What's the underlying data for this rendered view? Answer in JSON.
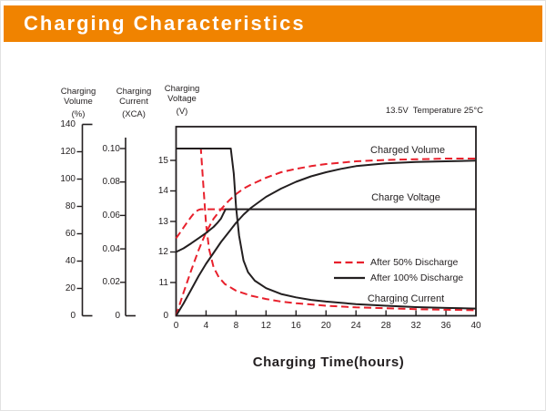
{
  "header": {
    "title": "Charging Characteristics"
  },
  "colors": {
    "accent_orange": "#F08300",
    "line_black": "#231F20",
    "line_red": "#E8202C",
    "title_text": "#FFFFFF"
  },
  "chart_data": {
    "type": "line",
    "annotation": "13.5V  Temperature 25°C",
    "x_axis": {
      "label": "Charging Time(hours)",
      "min": 0,
      "max": 40,
      "tick_values": [
        0,
        4,
        8,
        12,
        16,
        20,
        24,
        28,
        32,
        36,
        40
      ],
      "ticks": [
        "0",
        "4",
        "8",
        "12",
        "16",
        "20",
        "24",
        "28",
        "32",
        "36",
        "40"
      ]
    },
    "y_axes": {
      "volume": {
        "title_line1": "Charging",
        "title_line2": "Volume",
        "unit": "(%)",
        "min": 0,
        "max": 140,
        "tick_values": [
          140,
          120,
          100,
          80,
          60,
          40,
          20,
          0
        ],
        "ticks": [
          "140",
          "120",
          "100",
          "80",
          "60",
          "40",
          "20",
          "0"
        ]
      },
      "current": {
        "title_line1": "Charging",
        "title_line2": "Current",
        "unit": "(XCA)",
        "min": 0,
        "max": 0.1,
        "tick_values": [
          0.1,
          0.08,
          0.06,
          0.04,
          0.02,
          0
        ],
        "ticks": [
          "0.10",
          "0.08",
          "0.06",
          "0.04",
          "0.02",
          "0"
        ]
      },
      "voltage": {
        "title_line1": "Charging",
        "title_line2": "Voltage",
        "unit": "(V)",
        "min": 0,
        "max": 15.5,
        "tick_values": [
          15,
          14,
          13,
          12,
          11,
          0
        ],
        "ticks": [
          "15",
          "14",
          "13",
          "12",
          "11",
          "0"
        ]
      }
    },
    "curve_labels": {
      "charged_volume": "Charged Volume",
      "charge_voltage": "Charge Voltage",
      "charging_current": "Charging Current"
    },
    "legend": [
      {
        "label": "After 50% Discharge",
        "style": "dashed",
        "color": "#E8202C"
      },
      {
        "label": "After 100% Discharge",
        "style": "solid",
        "color": "#231F20"
      }
    ],
    "series": [
      {
        "name": "Charging Current",
        "condition": "After 50% Discharge",
        "axis": "current",
        "style": "dashed",
        "color": "#E8202C",
        "points": [
          [
            0,
            0.1
          ],
          [
            3.3,
            0.1
          ],
          [
            3.6,
            0.08
          ],
          [
            4,
            0.055
          ],
          [
            4.4,
            0.04
          ],
          [
            5,
            0.029
          ],
          [
            5.7,
            0.023
          ],
          [
            6.5,
            0.019
          ],
          [
            8,
            0.015
          ],
          [
            10,
            0.012
          ],
          [
            12,
            0.01
          ],
          [
            14,
            0.0085
          ],
          [
            16,
            0.0075
          ],
          [
            20,
            0.006
          ],
          [
            24,
            0.005
          ],
          [
            28,
            0.0045
          ],
          [
            32,
            0.004
          ],
          [
            36,
            0.0036
          ],
          [
            40,
            0.0033
          ]
        ]
      },
      {
        "name": "Charge Voltage",
        "condition": "After 50% Discharge",
        "axis": "voltage",
        "style": "dashed",
        "color": "#E8202C",
        "points": [
          [
            0,
            12.45
          ],
          [
            0.5,
            12.62
          ],
          [
            1,
            12.8
          ],
          [
            1.5,
            12.98
          ],
          [
            2,
            13.15
          ],
          [
            2.5,
            13.3
          ],
          [
            3,
            13.38
          ],
          [
            3.3,
            13.4
          ],
          [
            6.6,
            13.4
          ]
        ]
      },
      {
        "name": "Charged Volume",
        "condition": "After 50% Discharge",
        "axis": "volume",
        "style": "dashed",
        "color": "#E8202C",
        "points": [
          [
            0,
            0
          ],
          [
            1,
            17
          ],
          [
            2,
            33
          ],
          [
            3,
            48
          ],
          [
            4,
            61
          ],
          [
            5,
            71
          ],
          [
            6,
            78
          ],
          [
            7,
            84
          ],
          [
            8,
            89
          ],
          [
            9,
            93
          ],
          [
            10,
            96
          ],
          [
            12,
            101
          ],
          [
            14,
            105
          ],
          [
            16,
            107.5
          ],
          [
            18,
            109.5
          ],
          [
            20,
            111
          ],
          [
            24,
            113
          ],
          [
            28,
            114
          ],
          [
            32,
            114.5
          ],
          [
            36,
            115
          ],
          [
            40,
            115
          ]
        ]
      },
      {
        "name": "Charging Current",
        "condition": "After 100% Discharge",
        "axis": "current",
        "style": "solid",
        "color": "#231F20",
        "points": [
          [
            0,
            0.1
          ],
          [
            7.3,
            0.1
          ],
          [
            7.7,
            0.085
          ],
          [
            8,
            0.065
          ],
          [
            8.4,
            0.048
          ],
          [
            9,
            0.033
          ],
          [
            9.6,
            0.026
          ],
          [
            10.5,
            0.021
          ],
          [
            12,
            0.0165
          ],
          [
            14,
            0.013
          ],
          [
            16,
            0.011
          ],
          [
            18,
            0.0095
          ],
          [
            20,
            0.0085
          ],
          [
            24,
            0.007
          ],
          [
            28,
            0.006
          ],
          [
            32,
            0.0052
          ],
          [
            36,
            0.0047
          ],
          [
            40,
            0.0043
          ]
        ]
      },
      {
        "name": "Charge Voltage",
        "condition": "After 100% Discharge",
        "axis": "voltage",
        "style": "solid",
        "color": "#231F20",
        "points": [
          [
            0,
            12.0
          ],
          [
            1,
            12.12
          ],
          [
            2,
            12.28
          ],
          [
            3,
            12.45
          ],
          [
            4,
            12.62
          ],
          [
            5,
            12.82
          ],
          [
            5.5,
            12.95
          ],
          [
            6,
            13.1
          ],
          [
            6.3,
            13.25
          ],
          [
            6.6,
            13.4
          ],
          [
            40,
            13.4
          ]
        ]
      },
      {
        "name": "Charged Volume",
        "condition": "After 100% Discharge",
        "axis": "volume",
        "style": "solid",
        "color": "#231F20",
        "points": [
          [
            0,
            0
          ],
          [
            1,
            9
          ],
          [
            2,
            19
          ],
          [
            3,
            29
          ],
          [
            4,
            38
          ],
          [
            5,
            46
          ],
          [
            6,
            54
          ],
          [
            7,
            61
          ],
          [
            8,
            68
          ],
          [
            9,
            74
          ],
          [
            10,
            79
          ],
          [
            11,
            83
          ],
          [
            12,
            87
          ],
          [
            14,
            93
          ],
          [
            16,
            98
          ],
          [
            18,
            102
          ],
          [
            20,
            105
          ],
          [
            22,
            107.5
          ],
          [
            24,
            109.5
          ],
          [
            28,
            111.5
          ],
          [
            32,
            112.5
          ],
          [
            36,
            113
          ],
          [
            40,
            113.5
          ]
        ]
      }
    ]
  }
}
